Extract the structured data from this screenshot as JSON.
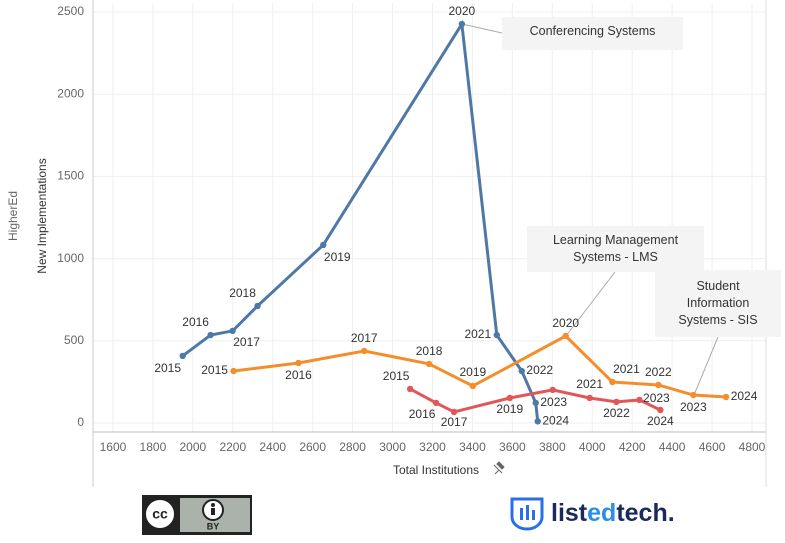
{
  "chart_data": {
    "type": "connected-scatter",
    "x_label": "Total Institutions",
    "y_label": "New Implementations",
    "y_header": "HigherEd",
    "xlim": [
      1500,
      4870
    ],
    "ylim": [
      -55,
      2555
    ],
    "xticks": [
      1600,
      1800,
      2000,
      2200,
      2400,
      2600,
      2800,
      3000,
      3200,
      3400,
      3600,
      3800,
      4000,
      4200,
      4400,
      4600,
      4800
    ],
    "yticks": [
      0,
      500,
      1000,
      1500,
      2000,
      2500
    ],
    "grid": true,
    "series": [
      {
        "name": "Conferencing Systems",
        "color": "#4e79a7",
        "x": [
          1949,
          2089,
          2199,
          2324,
          2653,
          3347,
          3522,
          3647,
          3717,
          3727
        ],
        "values": [
          408,
          535,
          560,
          712,
          1083,
          2427,
          535,
          316,
          122,
          10
        ],
        "point_labels": [
          "2015",
          "2016",
          "2017",
          "2018",
          "2019",
          "2020",
          "2021",
          "2022",
          "2023",
          "2024"
        ]
      },
      {
        "name": "Learning Management Systems - LMS",
        "color": "#f28e2b",
        "x": [
          2204,
          2529,
          2858,
          3183,
          3402,
          3867,
          4101,
          4331,
          4506,
          4670
        ],
        "values": [
          316,
          365,
          438,
          359,
          225,
          529,
          249,
          231,
          170,
          158
        ],
        "point_labels": [
          "2015",
          "2016",
          "2017",
          "2018",
          "2019",
          "2020",
          "2021",
          "2022",
          "2023",
          "2024"
        ]
      },
      {
        "name": "Student Information Systems - SIS",
        "color": "#e15759",
        "x": [
          3088,
          3218,
          3308,
          3587,
          3802,
          3987,
          4121,
          4236,
          4341
        ],
        "values": [
          207,
          122,
          67,
          152,
          201,
          152,
          128,
          140,
          79
        ],
        "point_labels": [
          "2015",
          "2016",
          "2017",
          "2019",
          null,
          "2021",
          "2022",
          "2023",
          "2024"
        ]
      }
    ]
  },
  "footer": {
    "license": "BY",
    "brand_parts": [
      "list",
      "ed",
      "tech."
    ]
  }
}
